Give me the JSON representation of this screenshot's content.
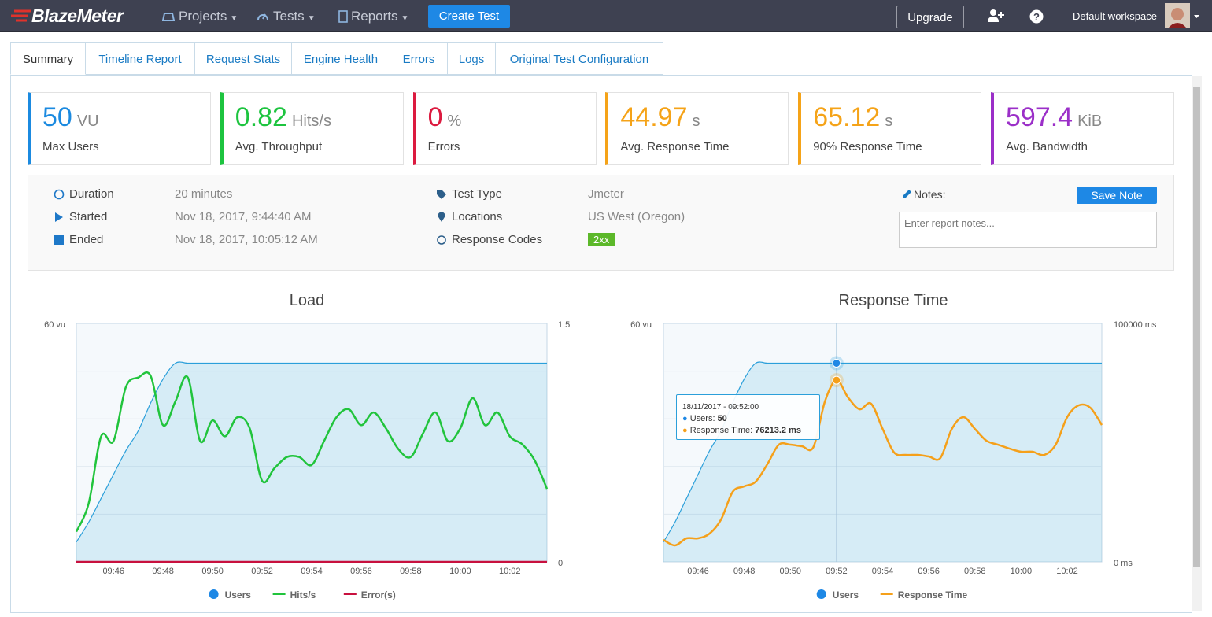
{
  "nav": {
    "brand": "BlazeMeter",
    "menu": [
      "Projects",
      "Tests",
      "Reports"
    ],
    "create": "Create Test",
    "upgrade": "Upgrade",
    "workspace": "Default workspace"
  },
  "tabs": [
    "Summary",
    "Timeline Report",
    "Request Stats",
    "Engine Health",
    "Errors",
    "Logs",
    "Original Test Configuration"
  ],
  "kpis": [
    {
      "value": 50,
      "unit": "VU",
      "label": "Max Users",
      "color": "#1b8ae0"
    },
    {
      "value": 0.82,
      "unit": "Hits/s",
      "label": "Avg. Throughput",
      "color": "#1dc43f"
    },
    {
      "value": 0,
      "unit": "%",
      "label": "Errors",
      "color": "#dc1a3f"
    },
    {
      "value": 44.97,
      "unit": "s",
      "label": "Avg. Response Time",
      "color": "#f5a318"
    },
    {
      "value": 65.12,
      "unit": "s",
      "label": "90% Response Time",
      "color": "#f5a318"
    },
    {
      "value": 597.4,
      "unit": "KiB",
      "label": "Avg. Bandwidth",
      "color": "#9b2fc8"
    }
  ],
  "details": [
    [
      {
        "label": "Duration",
        "value": "20 minutes"
      },
      {
        "label": "Started",
        "value": "Nov 18, 2017, 9:44:40 AM"
      },
      {
        "label": "Ended",
        "value": "Nov 18, 2017, 10:05:12 AM"
      }
    ],
    [
      {
        "label": "Test Type",
        "value": "Jmeter"
      },
      {
        "label": "Locations",
        "value": "US West (Oregon)"
      },
      {
        "label": "Response Codes",
        "value": "2xx"
      }
    ]
  ],
  "notes": {
    "label": "Notes:",
    "button": "Save Note",
    "placeholder": "Enter report notes..."
  },
  "chart_data": [
    {
      "type": "line",
      "title": "Load",
      "categories": [
        null,
        null,
        null,
        "09:46",
        null,
        null,
        null,
        "09:48",
        null,
        null,
        null,
        "09:50",
        null,
        null,
        null,
        "09:52",
        null,
        null,
        null,
        "09:54",
        null,
        null,
        null,
        "09:56",
        null,
        null,
        null,
        "09:58",
        null,
        null,
        null,
        "10:00",
        null,
        null,
        null,
        "10:02",
        null,
        null,
        null
      ],
      "ylim": [
        0,
        60
      ],
      "yticks": [
        {
          "value": 60,
          "label": "60 vu"
        }
      ],
      "y2lim": [
        0,
        1.5
      ],
      "y2ticks": [
        0,
        1.5
      ],
      "series": [
        {
          "name": "Users",
          "color": "#2b9fda",
          "area": true,
          "values": [
            5,
            10,
            16,
            22,
            28,
            33,
            40,
            46,
            50,
            50,
            50,
            50,
            50,
            50,
            50,
            50,
            50,
            50,
            50,
            50,
            50,
            50,
            50,
            50,
            50,
            50,
            50,
            50,
            50,
            50,
            50,
            50,
            50,
            50,
            50,
            50,
            50,
            50,
            50
          ]
        },
        {
          "name": "Hits/s",
          "color": "#21c43c",
          "axis": "y2",
          "values": [
            0.19,
            0.37,
            0.79,
            0.76,
            1.1,
            1.16,
            1.17,
            0.86,
            1.01,
            1.16,
            0.76,
            0.89,
            0.79,
            0.91,
            0.84,
            0.51,
            0.59,
            0.66,
            0.66,
            0.61,
            0.76,
            0.91,
            0.96,
            0.86,
            0.94,
            0.84,
            0.71,
            0.66,
            0.81,
            0.94,
            0.76,
            0.84,
            1.03,
            0.86,
            0.94,
            0.79,
            0.74,
            0.64,
            0.46
          ]
        },
        {
          "name": "Error(s)",
          "color": "#c8103e",
          "axis": "y2",
          "values": [
            0,
            0,
            0,
            0,
            0,
            0,
            0,
            0,
            0,
            0,
            0,
            0,
            0,
            0,
            0,
            0,
            0,
            0,
            0,
            0,
            0,
            0,
            0,
            0,
            0,
            0,
            0,
            0,
            0,
            0,
            0,
            0,
            0,
            0,
            0,
            0,
            0,
            0,
            0
          ]
        }
      ]
    },
    {
      "type": "line",
      "title": "Response Time",
      "categories": [
        null,
        null,
        null,
        "09:46",
        null,
        null,
        null,
        "09:48",
        null,
        null,
        null,
        "09:50",
        null,
        null,
        null,
        "09:52",
        null,
        null,
        null,
        "09:54",
        null,
        null,
        null,
        "09:56",
        null,
        null,
        null,
        "09:58",
        null,
        null,
        null,
        "10:00",
        null,
        null,
        null,
        "10:02",
        null,
        null,
        null
      ],
      "ylim": [
        0,
        60
      ],
      "yticks": [
        {
          "value": 60,
          "label": "60 vu"
        }
      ],
      "y2lim": [
        0,
        100000
      ],
      "y2ticks": [
        {
          "value": 0,
          "label": "0 ms"
        },
        {
          "value": 100000,
          "label": "100000 ms"
        }
      ],
      "series": [
        {
          "name": "Users",
          "color": "#2b9fda",
          "area": true,
          "values": [
            5,
            10,
            16,
            22,
            28,
            33,
            40,
            46,
            50,
            50,
            50,
            50,
            50,
            50,
            50,
            50,
            50,
            50,
            50,
            50,
            50,
            50,
            50,
            50,
            50,
            50,
            50,
            50,
            50,
            50,
            50,
            50,
            50,
            50,
            50,
            50,
            50,
            50,
            50
          ]
        },
        {
          "name": "Response Time",
          "color": "#f5a01a",
          "axis": "y2",
          "values": [
            9240,
            6930,
            9900,
            9900,
            11880,
            17820,
            29370,
            31680,
            33660,
            40920,
            49170,
            49170,
            48510,
            48180,
            67330,
            76213.2,
            68980,
            64030,
            66340,
            55780,
            45870,
            44880,
            44880,
            44220,
            43560,
            55780,
            60730,
            55780,
            50820,
            49170,
            47520,
            46200,
            46200,
            44880,
            49170,
            60730,
            65670,
            64680,
            57420
          ]
        }
      ]
    }
  ],
  "tooltip": {
    "title": "18/11/2017 - 09:52:00",
    "rows": [
      {
        "label": "Users:",
        "value": "50"
      },
      {
        "label": "Response Time:",
        "value": "76213.2 ms"
      }
    ]
  }
}
